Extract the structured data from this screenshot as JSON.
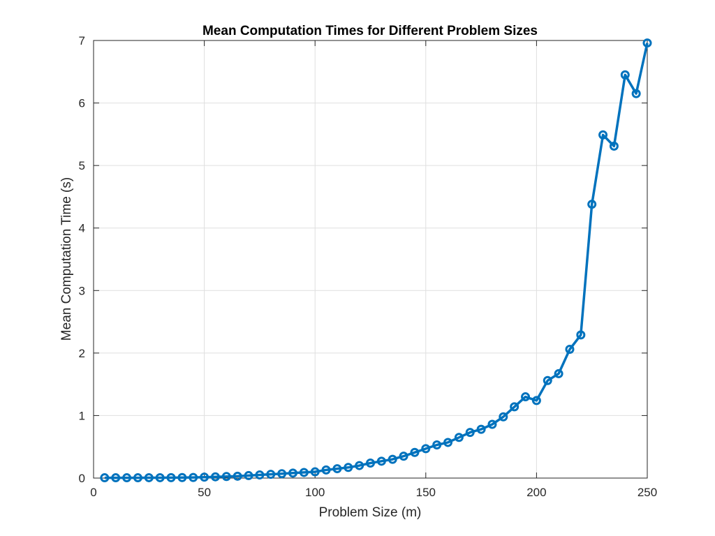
{
  "chart_data": {
    "type": "line",
    "title": "Mean Computation Times for Different Problem Sizes",
    "xlabel": "Problem Size (m)",
    "ylabel": "Mean Computation Time (s)",
    "xlim": [
      0,
      250
    ],
    "ylim": [
      0,
      7
    ],
    "xticks": [
      0,
      50,
      100,
      150,
      200,
      250
    ],
    "yticks": [
      0,
      1,
      2,
      3,
      4,
      5,
      6,
      7
    ],
    "xtick_labels": [
      "0",
      "50",
      "100",
      "150",
      "200",
      "250"
    ],
    "ytick_labels": [
      "0",
      "1",
      "2",
      "3",
      "4",
      "5",
      "6",
      "7"
    ],
    "grid": true,
    "marker": "circle",
    "color": "#0072BD",
    "series": [
      {
        "x": [
          5,
          10,
          15,
          20,
          25,
          30,
          35,
          40,
          45,
          50,
          55,
          60,
          65,
          70,
          75,
          80,
          85,
          90,
          95,
          100,
          105,
          110,
          115,
          120,
          125,
          130,
          135,
          140,
          145,
          150,
          155,
          160,
          165,
          170,
          175,
          180,
          185,
          190,
          195,
          200,
          205,
          210,
          215,
          220,
          225,
          230,
          235,
          240,
          245,
          250
        ],
        "values": [
          0.005,
          0.005,
          0.005,
          0.005,
          0.006,
          0.006,
          0.007,
          0.008,
          0.01,
          0.015,
          0.02,
          0.025,
          0.03,
          0.04,
          0.05,
          0.06,
          0.07,
          0.08,
          0.09,
          0.1,
          0.13,
          0.15,
          0.17,
          0.2,
          0.24,
          0.27,
          0.3,
          0.35,
          0.41,
          0.47,
          0.53,
          0.57,
          0.65,
          0.73,
          0.78,
          0.86,
          0.98,
          1.14,
          1.3,
          1.24,
          1.56,
          1.67,
          2.06,
          2.29,
          4.38,
          5.49,
          5.31,
          6.45,
          6.15,
          6.96
        ]
      }
    ]
  }
}
